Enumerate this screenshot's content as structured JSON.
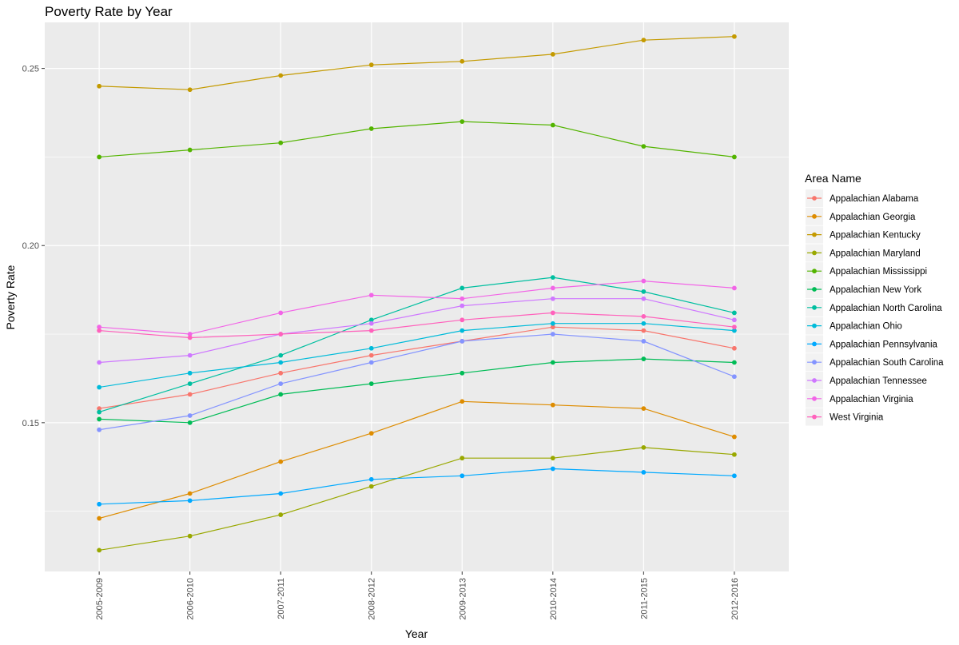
{
  "chart_data": {
    "type": "line",
    "title": "Poverty Rate by Year",
    "xlabel": "Year",
    "ylabel": "Poverty Rate",
    "legend_title": "Area Name",
    "legend_position": "right",
    "grid": true,
    "ylim": [
      0.108,
      0.263
    ],
    "y_major_ticks": [
      0.15,
      0.2,
      0.25
    ],
    "y_tick_labels": [
      "0.15",
      "0.20",
      "0.25"
    ],
    "y_minor_ticks": [
      0.125,
      0.175,
      0.225
    ],
    "categories": [
      "2005-2009",
      "2006-2010",
      "2007-2011",
      "2008-2012",
      "2009-2013",
      "2010-2014",
      "2011-2015",
      "2012-2016"
    ],
    "series": [
      {
        "name": "Appalachian Alabama",
        "color": "#F8766D",
        "values": [
          0.154,
          0.158,
          0.164,
          0.169,
          0.173,
          0.177,
          0.176,
          0.171
        ]
      },
      {
        "name": "Appalachian Georgia",
        "color": "#DE8C00",
        "values": [
          0.123,
          0.13,
          0.139,
          0.147,
          0.156,
          0.155,
          0.154,
          0.146
        ]
      },
      {
        "name": "Appalachian Kentucky",
        "color": "#C49A00",
        "values": [
          0.245,
          0.244,
          0.248,
          0.251,
          0.252,
          0.254,
          0.258,
          0.259
        ]
      },
      {
        "name": "Appalachian Maryland",
        "color": "#99A800",
        "values": [
          0.114,
          0.118,
          0.124,
          0.132,
          0.14,
          0.14,
          0.143,
          0.141
        ]
      },
      {
        "name": "Appalachian Mississippi",
        "color": "#53B400",
        "values": [
          0.225,
          0.227,
          0.229,
          0.233,
          0.235,
          0.234,
          0.228,
          0.225
        ]
      },
      {
        "name": "Appalachian New York",
        "color": "#00BC56",
        "values": [
          0.151,
          0.15,
          0.158,
          0.161,
          0.164,
          0.167,
          0.168,
          0.167
        ]
      },
      {
        "name": "Appalachian North Carolina",
        "color": "#00BFA0",
        "values": [
          0.153,
          0.161,
          0.169,
          0.179,
          0.188,
          0.191,
          0.187,
          0.181
        ]
      },
      {
        "name": "Appalachian Ohio",
        "color": "#00BBDA",
        "values": [
          0.16,
          0.164,
          0.167,
          0.171,
          0.176,
          0.178,
          0.178,
          0.176
        ]
      },
      {
        "name": "Appalachian Pennsylvania",
        "color": "#00A9FF",
        "values": [
          0.127,
          0.128,
          0.13,
          0.134,
          0.135,
          0.137,
          0.136,
          0.135
        ]
      },
      {
        "name": "Appalachian South Carolina",
        "color": "#8494FF",
        "values": [
          0.148,
          0.152,
          0.161,
          0.167,
          0.173,
          0.175,
          0.173,
          0.163
        ]
      },
      {
        "name": "Appalachian Tennessee",
        "color": "#CF78FF",
        "values": [
          0.167,
          0.169,
          0.175,
          0.178,
          0.183,
          0.185,
          0.185,
          0.179
        ]
      },
      {
        "name": "Appalachian Virginia",
        "color": "#F265E7",
        "values": [
          0.177,
          0.175,
          0.181,
          0.186,
          0.185,
          0.188,
          0.19,
          0.188
        ]
      },
      {
        "name": "West Virginia",
        "color": "#FF62BC",
        "values": [
          0.176,
          0.174,
          0.175,
          0.176,
          0.179,
          0.181,
          0.18,
          0.177
        ]
      }
    ]
  }
}
